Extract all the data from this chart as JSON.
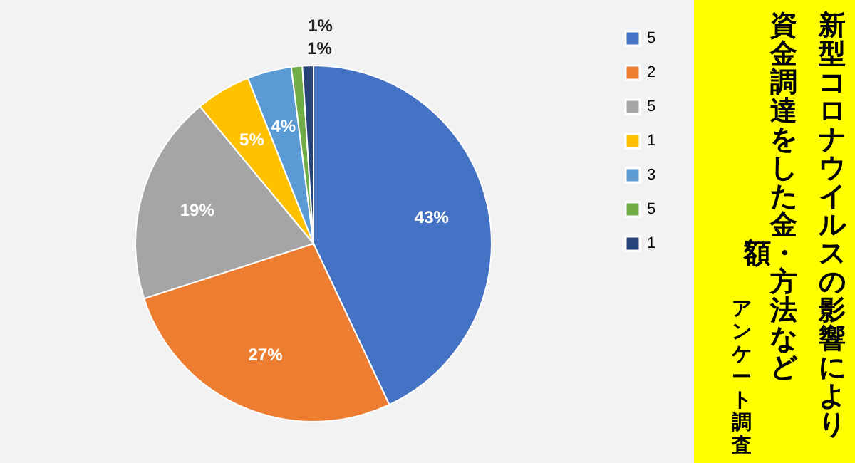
{
  "chart_data": {
    "type": "pie",
    "title": "新型コロナウイルスの影響により資金調達をした金額・方法など",
    "subtitle": "アンケート調査",
    "categories": [
      "5",
      "2",
      "5",
      "1",
      "3",
      "5",
      "1"
    ],
    "values": [
      43,
      27,
      19,
      5,
      4,
      1,
      1
    ],
    "colors": [
      "#4472c4",
      "#ed7d31",
      "#a5a5a5",
      "#ffc000",
      "#5b9bd5",
      "#70ad47",
      "#264478"
    ],
    "value_labels": [
      "43%",
      "27%",
      "19%",
      "5%",
      "4%",
      "1%",
      "1%"
    ],
    "legend": "right"
  }
}
